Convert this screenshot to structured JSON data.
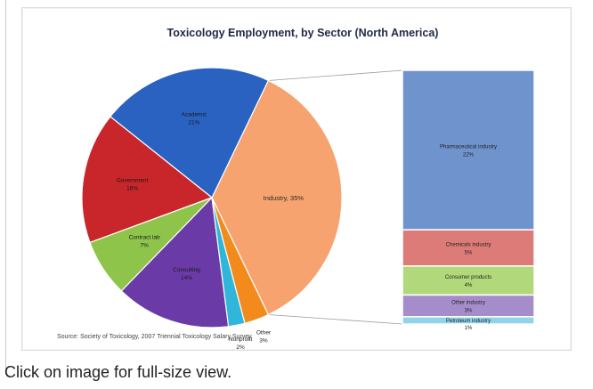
{
  "caption": "Click on image for full-size view.",
  "chart_data": {
    "type": "pie",
    "title": "Toxicology Employment, by Sector (North America)",
    "source": "Source: Society of Toxicology, 2007 Triennial Toxicology Salary Survey",
    "pie": [
      {
        "label": "Industry",
        "value": 35,
        "text": "Industry, 35%",
        "color": "#f6a36f"
      },
      {
        "label": "Academic",
        "value": 21,
        "text": "21%",
        "color": "#2a62c2"
      },
      {
        "label": "Government",
        "value": 16,
        "text": "16%",
        "color": "#c8262a"
      },
      {
        "label": "Contract lab",
        "value": 7,
        "text": "7%",
        "color": "#8ec44a"
      },
      {
        "label": "Consulting",
        "value": 14,
        "text": "14%",
        "color": "#6a3ba6"
      },
      {
        "label": "Nonprofit",
        "value": 2,
        "text": "2%",
        "color": "#30b6d8"
      },
      {
        "label": "Other",
        "value": 3,
        "text": "3%",
        "color": "#f28a1c"
      }
    ],
    "breakdown_of": "Industry",
    "breakdown": [
      {
        "label": "Pharmaceutical industry",
        "value": 22,
        "text": "22%",
        "color": "#6f93cc"
      },
      {
        "label": "Chemicals industry",
        "value": 5,
        "text": "5%",
        "color": "#dd7b78"
      },
      {
        "label": "Consumer products",
        "value": 4,
        "text": "4%",
        "color": "#b2d87c"
      },
      {
        "label": "Other industry",
        "value": 3,
        "text": "3%",
        "color": "#a58dcb"
      },
      {
        "label": "Petroleum industry",
        "value": 1,
        "text": "1%",
        "color": "#8fd4ea"
      }
    ]
  }
}
